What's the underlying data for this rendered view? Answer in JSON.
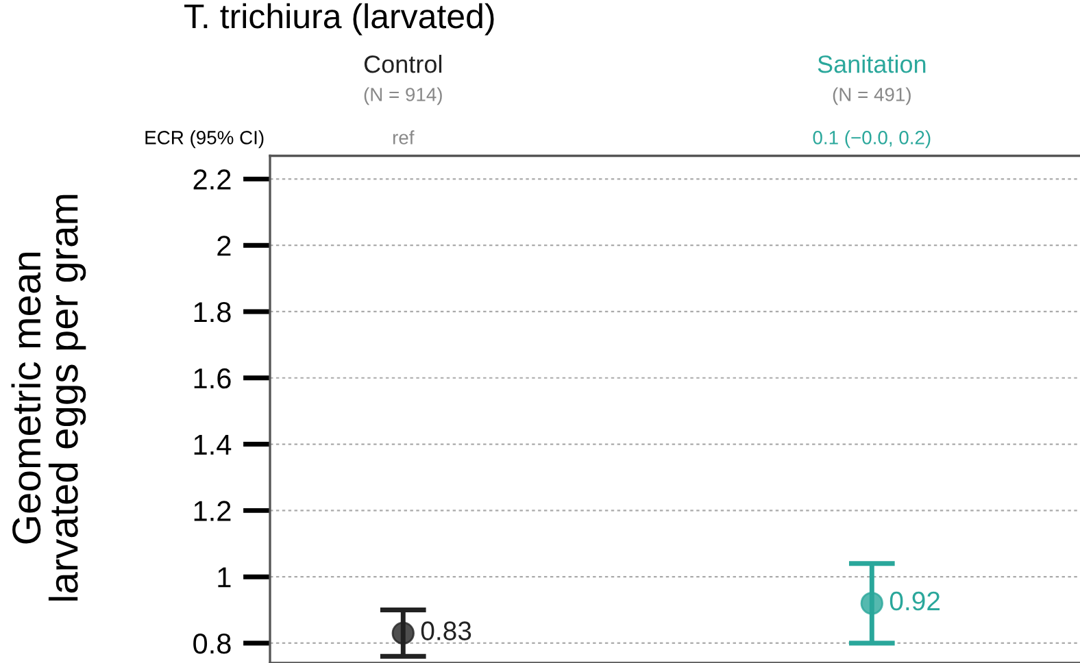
{
  "chart_data": {
    "type": "scatter",
    "title": "T. trichiura (larvated)",
    "ylabel": "Geometric mean\nlarvated eggs per gram",
    "categories": [
      "Control",
      "Sanitation"
    ],
    "values": [
      0.83,
      0.92
    ],
    "errors": [
      [
        0.76,
        0.9
      ],
      [
        0.8,
        1.04
      ]
    ],
    "value_labels": [
      "0.83",
      "0.92"
    ],
    "colors": [
      "#222222",
      "#2aa79b"
    ],
    "marker": "circle",
    "annotations": [
      "(N = 914)",
      "(N = 491)",
      "ECR (95% CI)",
      "ref",
      "0.1 (−0.0, 0.2)"
    ],
    "ylim": [
      0.74,
      2.27
    ],
    "yticks": [
      {
        "value": 0.8,
        "label": "0.8"
      },
      1,
      {
        "value": 1.2,
        "label": "1.2"
      },
      {
        "value": 1.4,
        "label": "1.4"
      },
      {
        "value": 1.6,
        "label": "1.6"
      },
      {
        "value": 1.8,
        "label": "1.8"
      },
      2,
      {
        "value": 2.2,
        "label": "2.2"
      }
    ],
    "grid": "y"
  }
}
